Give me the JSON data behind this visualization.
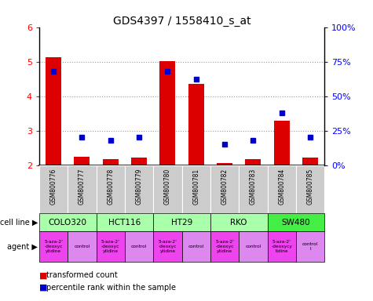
{
  "title": "GDS4397 / 1558410_s_at",
  "samples": [
    "GSM800776",
    "GSM800777",
    "GSM800778",
    "GSM800779",
    "GSM800780",
    "GSM800781",
    "GSM800782",
    "GSM800783",
    "GSM800784",
    "GSM800785"
  ],
  "bar_values": [
    5.12,
    2.25,
    2.18,
    2.22,
    5.02,
    4.35,
    2.05,
    2.18,
    3.28,
    2.22
  ],
  "dot_values": [
    68,
    20,
    18,
    20,
    68,
    62,
    15,
    18,
    38,
    20
  ],
  "ylim": [
    2,
    6
  ],
  "yticks": [
    2,
    3,
    4,
    5,
    6
  ],
  "y2ticks": [
    0,
    25,
    50,
    75,
    100
  ],
  "y2labels": [
    "0%",
    "25%",
    "50%",
    "75%",
    "100%"
  ],
  "bar_color": "#dd0000",
  "dot_color": "#0000cc",
  "cell_lines": [
    {
      "name": "COLO320",
      "start": 0,
      "end": 2,
      "color": "#aaffaa"
    },
    {
      "name": "HCT116",
      "start": 2,
      "end": 4,
      "color": "#aaffaa"
    },
    {
      "name": "HT29",
      "start": 4,
      "end": 6,
      "color": "#aaffaa"
    },
    {
      "name": "RKO",
      "start": 6,
      "end": 8,
      "color": "#aaffaa"
    },
    {
      "name": "SW480",
      "start": 8,
      "end": 10,
      "color": "#44ee44"
    }
  ],
  "agents": [
    {
      "name": "5-aza-2'\n-deoxyc\nytidine",
      "is_drug": true
    },
    {
      "name": "control",
      "is_drug": false
    },
    {
      "name": "5-aza-2'\n-deoxyc\nytidine",
      "is_drug": true
    },
    {
      "name": "control",
      "is_drug": false
    },
    {
      "name": "5-aza-2'\n-deoxyc\nytidine",
      "is_drug": true
    },
    {
      "name": "control",
      "is_drug": false
    },
    {
      "name": "5-aza-2'\n-deoxyc\nytidine",
      "is_drug": true
    },
    {
      "name": "control",
      "is_drug": false
    },
    {
      "name": "5-aza-2'\n-deoxycy\ntidine",
      "is_drug": true
    },
    {
      "name": "control\nl",
      "is_drug": false
    }
  ],
  "drug_color": "#ee44ee",
  "control_color": "#dd88ee",
  "cell_line_light": "#aaffaa",
  "cell_line_bright": "#44ee44",
  "sample_bg": "#cccccc",
  "cell_line_label": "cell line",
  "agent_label": "agent",
  "legend_red": "transformed count",
  "legend_blue": "percentile rank within the sample",
  "bg_color": "#ffffff"
}
